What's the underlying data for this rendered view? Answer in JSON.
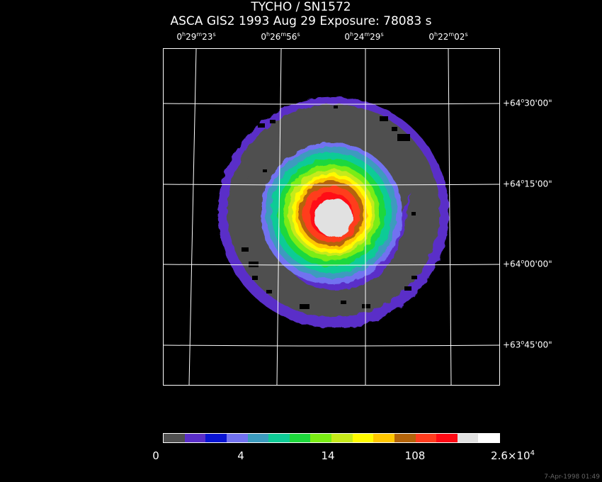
{
  "header": {
    "title": "TYCHO / SN1572",
    "subtitle": "ASCA GIS2    1993 Aug 29    Exposure: 78083 s"
  },
  "ra_labels": [
    {
      "h": "0",
      "m": "29",
      "s": "23"
    },
    {
      "h": "0",
      "m": "26",
      "s": "56"
    },
    {
      "h": "0",
      "m": "24",
      "s": "29"
    },
    {
      "h": "0",
      "m": "22",
      "s": "02"
    }
  ],
  "dec_labels": [
    {
      "deg": "+64",
      "min": "30",
      "sec": "00"
    },
    {
      "deg": "+64",
      "min": "15",
      "sec": "00"
    },
    {
      "deg": "+64",
      "min": "00",
      "sec": "00"
    },
    {
      "deg": "+63",
      "min": "45",
      "sec": "00"
    }
  ],
  "colorbar": {
    "colors": [
      "#505050",
      "#5a2ec8",
      "#0a14d2",
      "#7272f0",
      "#3c9bbe",
      "#0fcb96",
      "#1ed83c",
      "#7aed14",
      "#c6ea1a",
      "#fffa00",
      "#ffc600",
      "#b4640a",
      "#ff3c1e",
      "#ff0a14",
      "#e1e1e1",
      "#ffffff"
    ],
    "tick_labels": [
      "0",
      "4",
      "14",
      "108",
      "2.6×10"
    ],
    "max_exponent": "4"
  },
  "timestamp": "7-Apr-1998 01:49"
}
